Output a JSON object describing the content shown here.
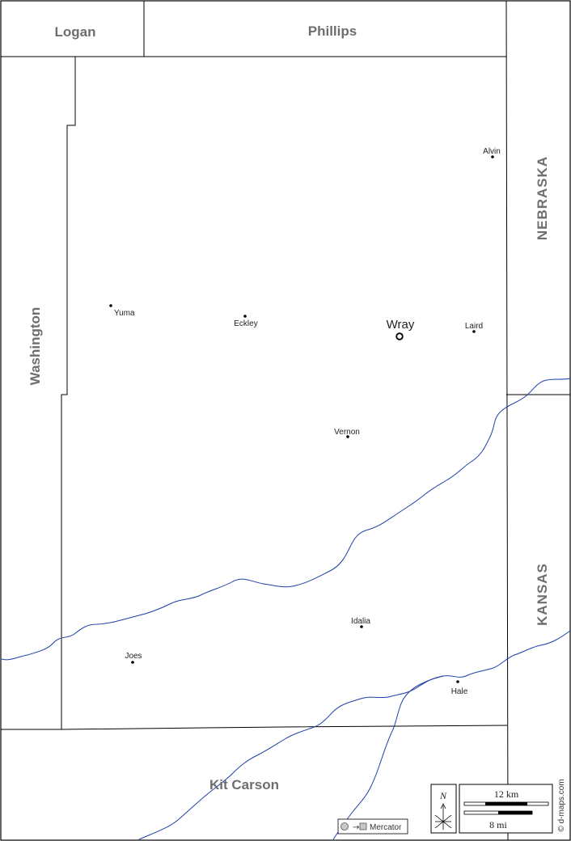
{
  "colors": {
    "border": "#000000",
    "river": "#1f3fa8",
    "label_gray": "#6e6e6e",
    "text": "#222222"
  },
  "counties": {
    "logan": "Logan",
    "phillips": "Phillips",
    "washington": "Washington",
    "kit_carson": "Kit Carson"
  },
  "states": {
    "nebraska": "NEBRASKA",
    "kansas": "KANSAS"
  },
  "towns": [
    {
      "name": "Alvin",
      "marker": "dot"
    },
    {
      "name": "Yuma",
      "marker": "dot"
    },
    {
      "name": "Eckley",
      "marker": "dot"
    },
    {
      "name": "Wray",
      "marker": "county-seat-circle"
    },
    {
      "name": "Laird",
      "marker": "dot"
    },
    {
      "name": "Vernon",
      "marker": "dot"
    },
    {
      "name": "Idalia",
      "marker": "dot"
    },
    {
      "name": "Joes",
      "marker": "dot"
    },
    {
      "name": "Hale",
      "marker": "dot"
    }
  ],
  "legend": {
    "north": "N",
    "scale_km": "12 km",
    "scale_mi": "8 mi",
    "projection": "Mercator"
  },
  "credit": "© d-maps.com"
}
